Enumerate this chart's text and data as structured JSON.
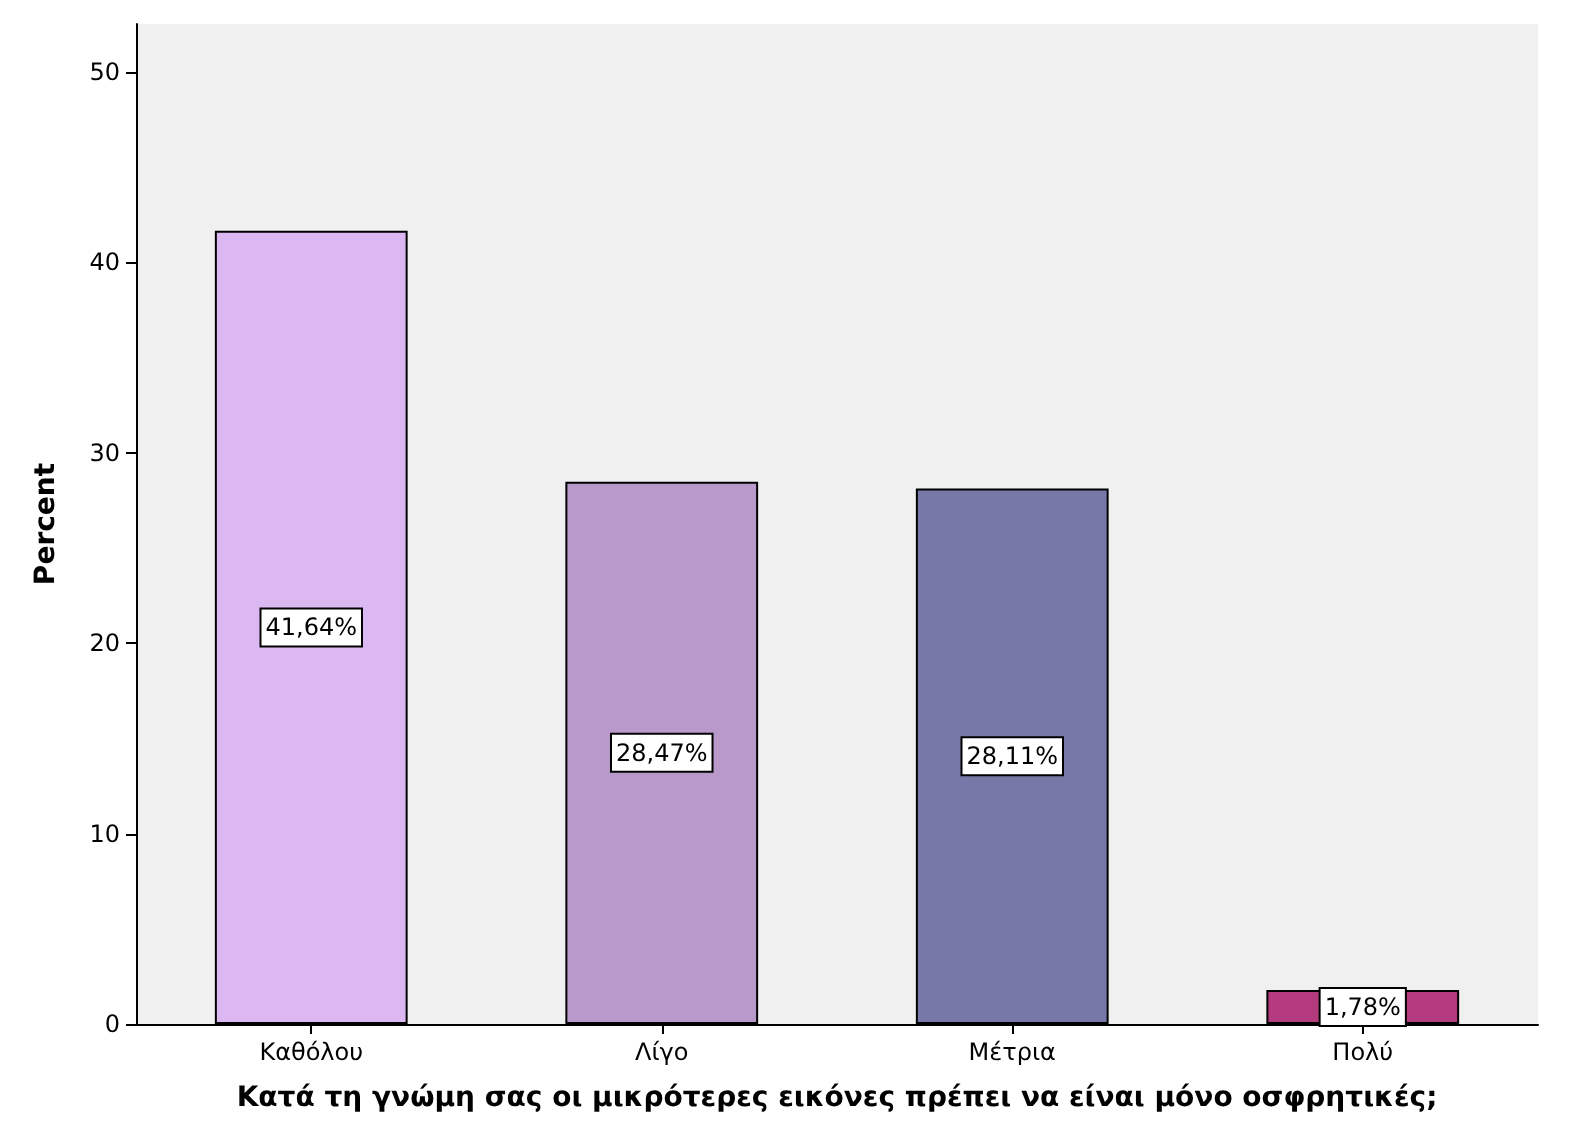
{
  "chart_data": {
    "type": "bar",
    "xlabel": "Κατά τη γνώμη σας οι μικρότερες εικόνες πρέπει να είναι μόνο οσφρητικές;",
    "ylabel": "Percent",
    "categories": [
      "Καθόλου",
      "Λίγο",
      "Μέτρια",
      "Πολύ"
    ],
    "values": [
      41.64,
      28.47,
      28.11,
      1.78
    ],
    "value_labels": [
      "41,64%",
      "28,47%",
      "28,11%",
      "1,78%"
    ],
    "colors": [
      "#dcb8f2",
      "#b899c9",
      "#7878a8",
      "#b33a7c"
    ],
    "ylim": [
      0,
      52.5
    ],
    "yticks": [
      0,
      10,
      20,
      30,
      40,
      50
    ],
    "grid": false
  }
}
